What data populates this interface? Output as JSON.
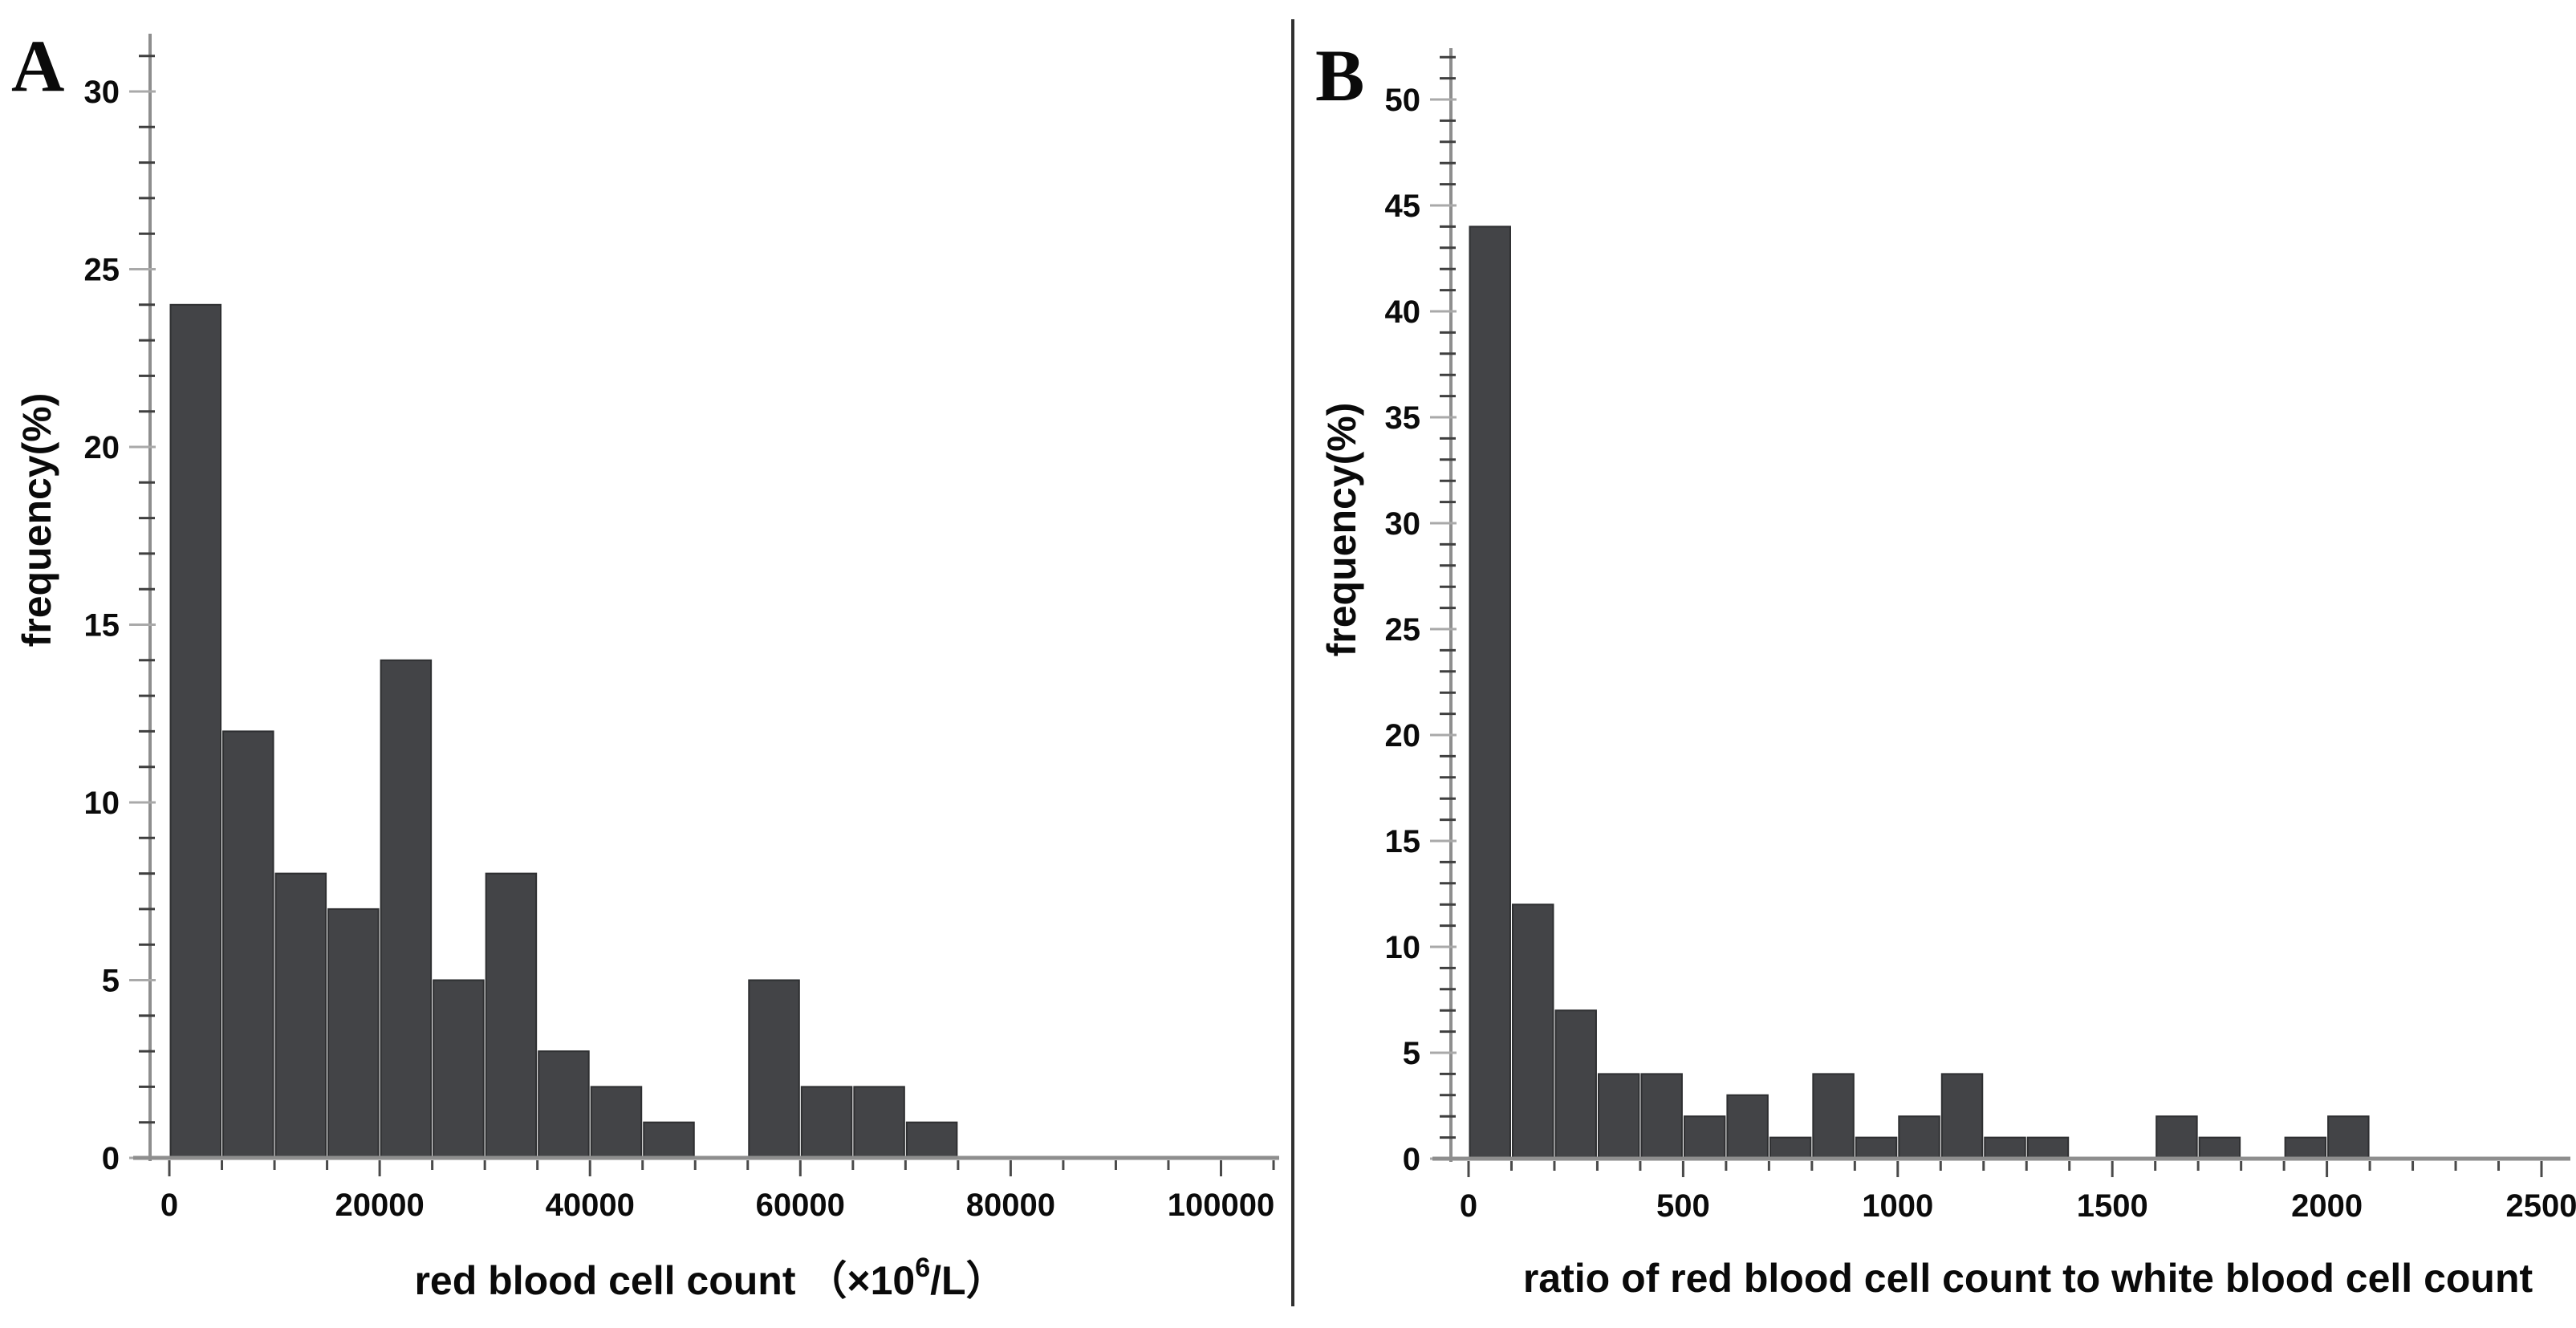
{
  "panels": [
    {
      "letter": "A",
      "y_title": "frequency(%)",
      "x_title": {
        "pre": "red blood cell count （×10",
        "sup": "6",
        "post": "/L）"
      }
    },
    {
      "letter": "B",
      "y_title": "frequency(%)",
      "x_title": {
        "pre": "ratio of red blood cell count to white blood cell count",
        "sup": "",
        "post": ""
      }
    }
  ],
  "colors": {
    "bar_fill": "#434447",
    "bar_edge": "#2e2f31",
    "axis_line": "#8e8e8e",
    "major_tick": "#a9a9a9",
    "minor_tick": "#3f3f3f",
    "x_tick": "#4a4a4a",
    "text": "#0b0b0b",
    "divider": "#303030"
  },
  "chart_data": [
    {
      "type": "bar",
      "panel": "A",
      "title": "",
      "xlabel": "red blood cell count (×10^6/L)",
      "ylabel": "frequency(%)",
      "bin_start": 0,
      "bin_width": 5000,
      "values": [
        24,
        12,
        8,
        7,
        14,
        5,
        8,
        3,
        2,
        1,
        0,
        5,
        2,
        2,
        1
      ],
      "x_major_ticks": [
        0,
        20000,
        40000,
        60000,
        80000,
        100000
      ],
      "x_minor_step": 5000,
      "xlim": [
        0,
        105000
      ],
      "y_major_ticks": [
        0,
        5,
        10,
        15,
        20,
        25,
        30
      ],
      "y_minor_step": 1,
      "ylim": [
        0,
        31.5
      ],
      "grid": false,
      "legend": null
    },
    {
      "type": "bar",
      "panel": "B",
      "title": "",
      "xlabel": "ratio of red blood cell count to white blood cell count",
      "ylabel": "frequency(%)",
      "bin_start": 0,
      "bin_width": 100,
      "values": [
        44,
        12,
        7,
        4,
        4,
        2,
        3,
        1,
        4,
        1,
        2,
        4,
        1,
        1,
        0,
        0,
        2,
        1,
        0,
        1,
        2
      ],
      "x_major_ticks": [
        0,
        500,
        1000,
        1500,
        2000,
        2500
      ],
      "x_minor_step": 100,
      "xlim": [
        0,
        2600
      ],
      "y_major_ticks": [
        0,
        5,
        10,
        15,
        20,
        25,
        30,
        35,
        40,
        45,
        50
      ],
      "y_minor_step": 1,
      "ylim": [
        0,
        52
      ],
      "grid": false,
      "legend": null
    }
  ]
}
